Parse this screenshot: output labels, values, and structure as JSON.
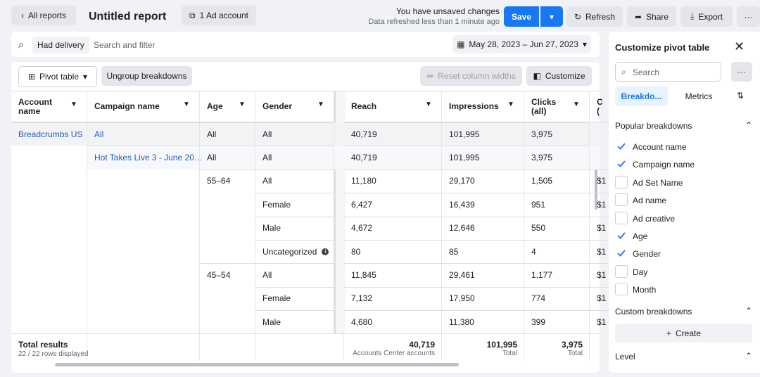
{
  "topbar": {
    "back": "All reports",
    "title": "Untitled report",
    "account": "1 Ad account",
    "status": "You have unsaved changes",
    "refreshed": "Data refreshed less than 1 minute ago",
    "save": "Save",
    "refresh": "Refresh",
    "share": "Share",
    "export": "Export"
  },
  "filter": {
    "chip": "Had delivery",
    "placeholder": "Search and filter",
    "date_range": "May 28, 2023 – Jun 27, 2023"
  },
  "toolbar": {
    "view": "Pivot table",
    "ungroup": "Ungroup breakdowns",
    "reset": "Reset column widths",
    "customize": "Customize"
  },
  "table": {
    "columns": [
      "Account name",
      "Campaign name",
      "Age",
      "Gender",
      "Reach",
      "Impressions",
      "Clicks (all)",
      "C ("
    ],
    "rows": [
      [
        "Breadcrumbs US",
        "All",
        "All",
        "All",
        "40,719",
        "101,995",
        "3,975",
        null
      ],
      [
        null,
        "Hot Takes Live 3 - June 20…",
        "All",
        "All",
        "40,719",
        "101,995",
        "3,975",
        null
      ],
      [
        null,
        null,
        "55–64",
        "All",
        "11,180",
        "29,170",
        "1,505",
        "$1"
      ],
      [
        null,
        null,
        null,
        "Female",
        "6,427",
        "16,439",
        "951",
        "$1"
      ],
      [
        null,
        null,
        null,
        "Male",
        "4,672",
        "12,646",
        "550",
        "$1"
      ],
      [
        null,
        null,
        null,
        "Uncategorized",
        "80",
        "85",
        "4",
        "$1"
      ],
      [
        null,
        null,
        "45–54",
        "All",
        "11,845",
        "29,461",
        "1,177",
        "$1"
      ],
      [
        null,
        null,
        null,
        "Female",
        "7,132",
        "17,950",
        "774",
        "$1"
      ],
      [
        null,
        null,
        null,
        "Male",
        "4,680",
        "11,380",
        "399",
        "$1"
      ]
    ],
    "totals": {
      "label": "Total results",
      "rows_displayed": "22 / 22 rows displayed",
      "reach": {
        "value": "40,719",
        "note": "Accounts Center accounts"
      },
      "impressions": {
        "value": "101,995",
        "note": "Total"
      },
      "clicks": {
        "value": "3,975",
        "note": "Total"
      }
    }
  },
  "panel": {
    "title": "Customize pivot table",
    "search": "Search",
    "tabs": [
      "Breakdo...",
      "Metrics"
    ],
    "popular": "Popular breakdowns",
    "items": [
      {
        "label": "Account name",
        "checked": true
      },
      {
        "label": "Campaign name",
        "checked": true
      },
      {
        "label": "Ad Set Name",
        "checked": false
      },
      {
        "label": "Ad name",
        "checked": false
      },
      {
        "label": "Ad creative",
        "checked": false
      },
      {
        "label": "Age",
        "checked": true
      },
      {
        "label": "Gender",
        "checked": true
      },
      {
        "label": "Day",
        "checked": false
      },
      {
        "label": "Month",
        "checked": false
      }
    ],
    "custom": "Custom breakdowns",
    "create": "Create",
    "level": "Level"
  }
}
